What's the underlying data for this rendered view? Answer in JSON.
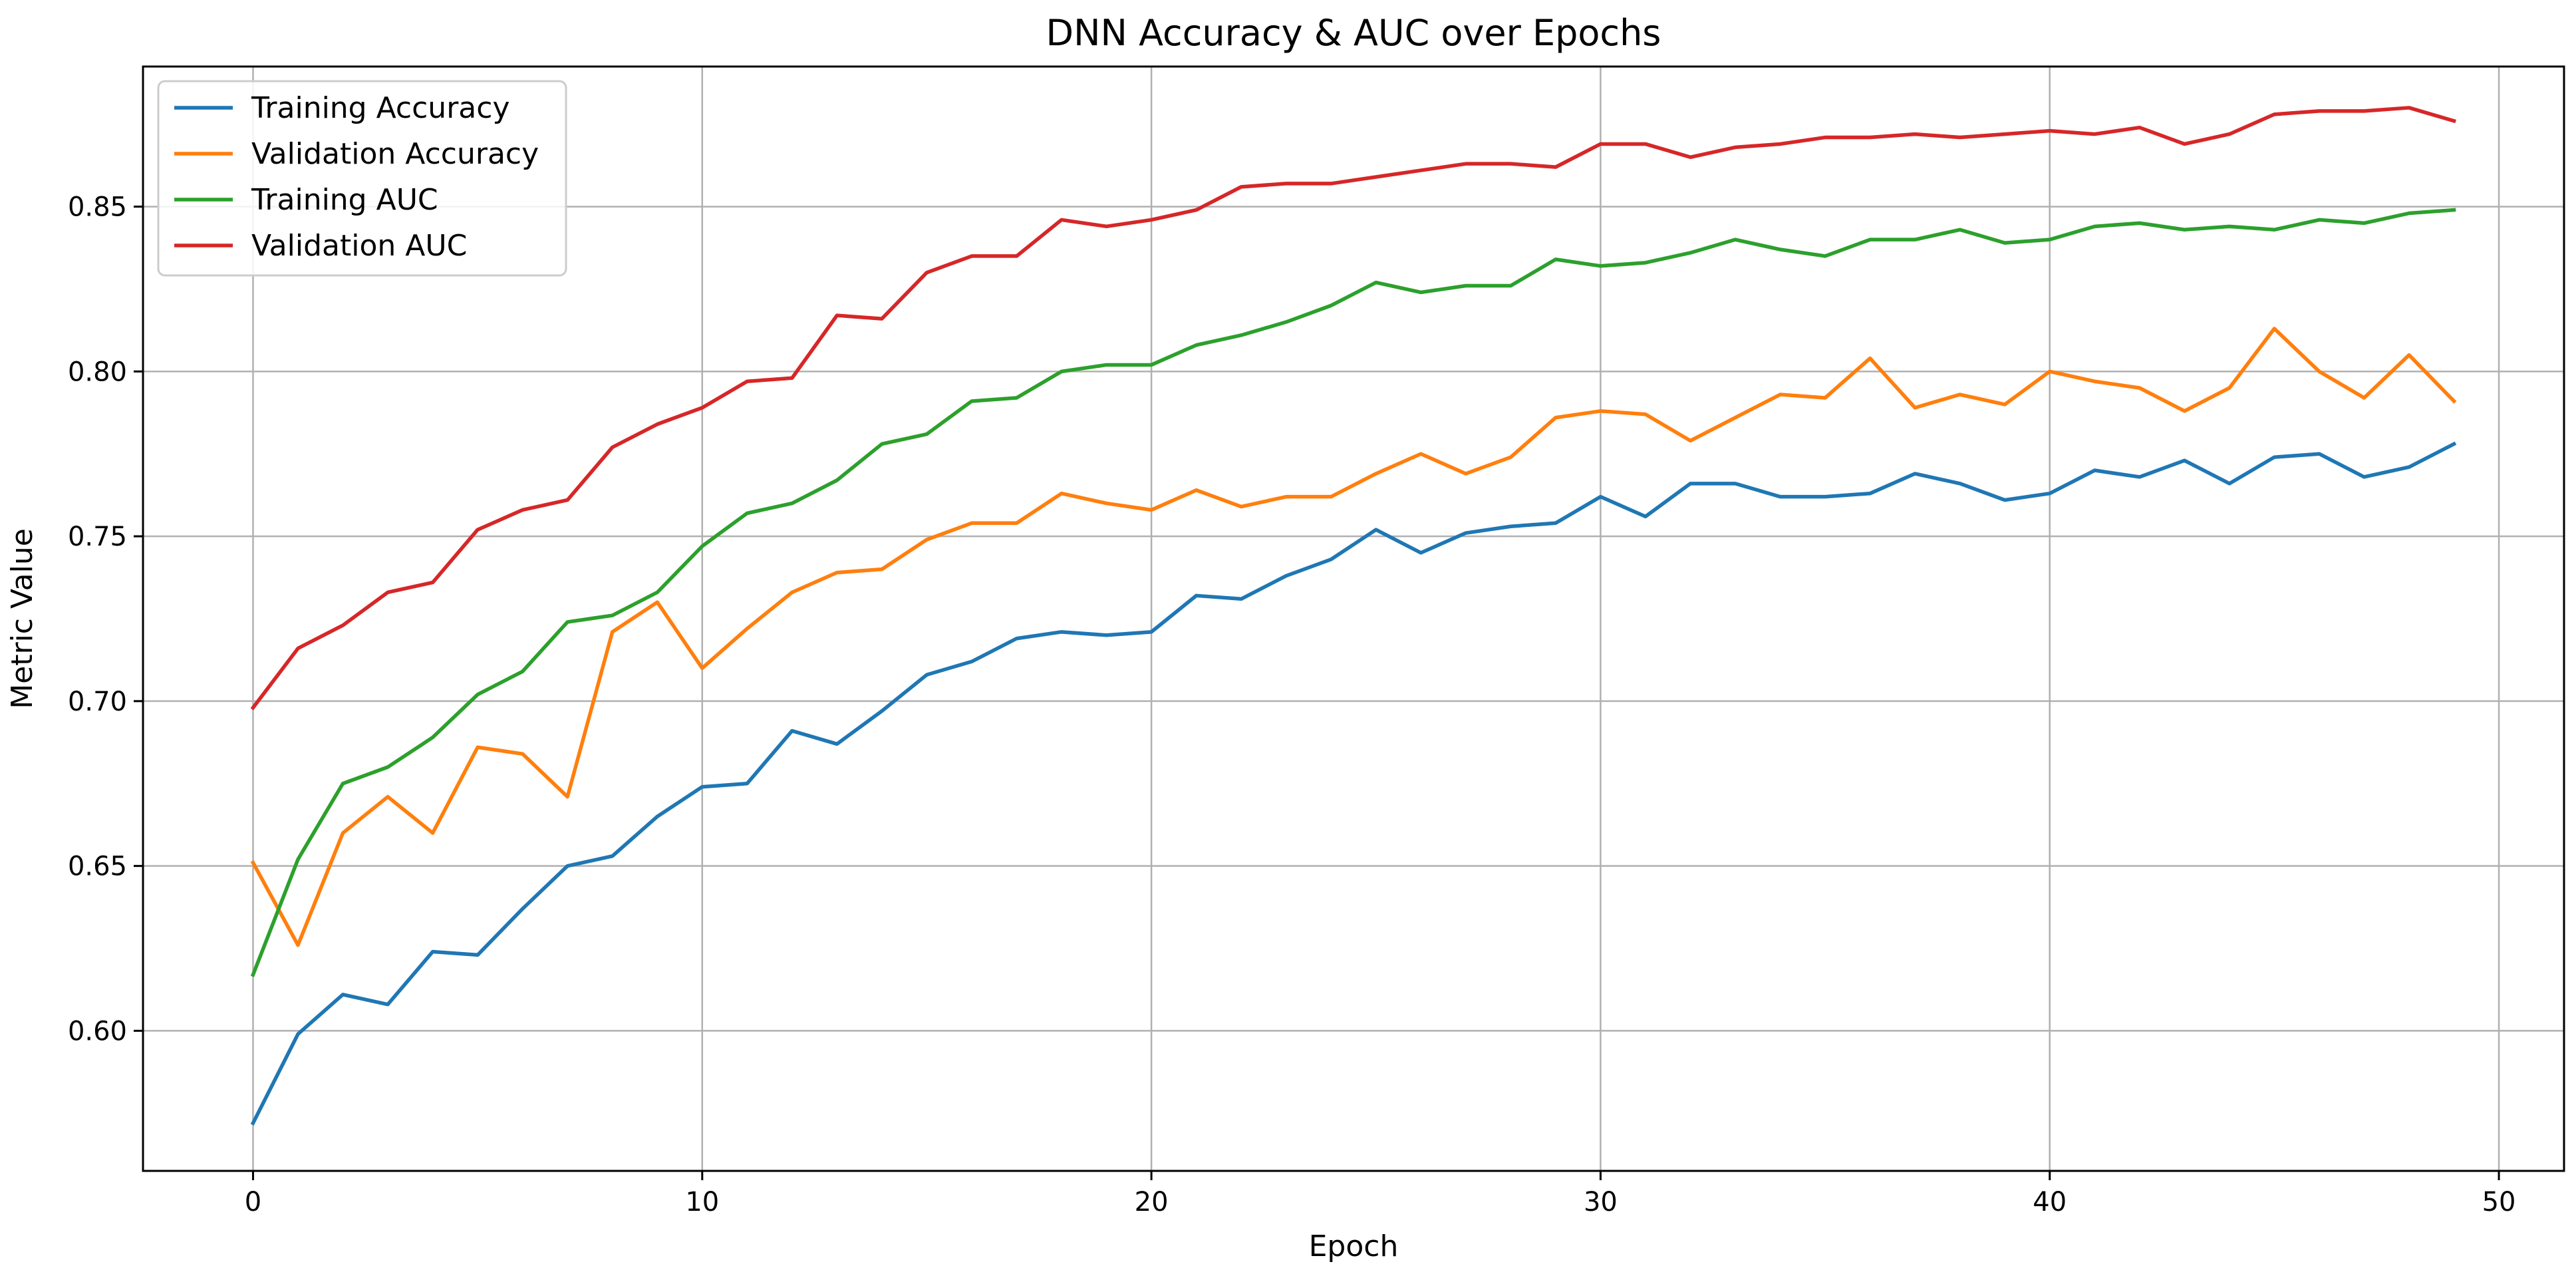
{
  "chart_data": {
    "type": "line",
    "title": "DNN Accuracy & AUC over Epochs",
    "xlabel": "Epoch",
    "ylabel": "Metric Value",
    "xlim": [
      -2.45,
      51.45
    ],
    "ylim": [
      0.5575,
      0.8925
    ],
    "xticks": [
      0,
      10,
      20,
      30,
      40,
      50
    ],
    "yticks": [
      0.6,
      0.65,
      0.7,
      0.75,
      0.8,
      0.85
    ],
    "grid": true,
    "legend_position": "top-left",
    "x": [
      0,
      1,
      2,
      3,
      4,
      5,
      6,
      7,
      8,
      9,
      10,
      11,
      12,
      13,
      14,
      15,
      16,
      17,
      18,
      19,
      20,
      21,
      22,
      23,
      24,
      25,
      26,
      27,
      28,
      29,
      30,
      31,
      32,
      33,
      34,
      35,
      36,
      37,
      38,
      39,
      40,
      41,
      42,
      43,
      44,
      45,
      46,
      47,
      48,
      49
    ],
    "series": [
      {
        "name": "Training Accuracy",
        "color": "#1f77b4",
        "values": [
          0.572,
          0.599,
          0.611,
          0.608,
          0.624,
          0.623,
          0.637,
          0.65,
          0.653,
          0.665,
          0.674,
          0.675,
          0.691,
          0.687,
          0.697,
          0.708,
          0.712,
          0.719,
          0.721,
          0.72,
          0.721,
          0.732,
          0.731,
          0.738,
          0.743,
          0.752,
          0.745,
          0.751,
          0.753,
          0.754,
          0.762,
          0.756,
          0.766,
          0.766,
          0.762,
          0.762,
          0.763,
          0.769,
          0.766,
          0.761,
          0.763,
          0.77,
          0.768,
          0.773,
          0.766,
          0.774,
          0.775,
          0.768,
          0.771,
          0.778
        ]
      },
      {
        "name": "Validation Accuracy",
        "color": "#ff7f0e",
        "values": [
          0.651,
          0.626,
          0.66,
          0.671,
          0.66,
          0.686,
          0.684,
          0.671,
          0.721,
          0.73,
          0.71,
          0.722,
          0.733,
          0.739,
          0.74,
          0.749,
          0.754,
          0.754,
          0.763,
          0.76,
          0.758,
          0.764,
          0.759,
          0.762,
          0.762,
          0.769,
          0.775,
          0.769,
          0.774,
          0.786,
          0.788,
          0.787,
          0.779,
          0.786,
          0.793,
          0.792,
          0.804,
          0.789,
          0.793,
          0.79,
          0.8,
          0.797,
          0.795,
          0.788,
          0.795,
          0.813,
          0.8,
          0.792,
          0.805,
          0.791
        ]
      },
      {
        "name": "Training AUC",
        "color": "#2ca02c",
        "values": [
          0.617,
          0.652,
          0.675,
          0.68,
          0.689,
          0.702,
          0.709,
          0.724,
          0.726,
          0.733,
          0.747,
          0.757,
          0.76,
          0.767,
          0.778,
          0.781,
          0.791,
          0.792,
          0.8,
          0.802,
          0.802,
          0.808,
          0.811,
          0.815,
          0.82,
          0.827,
          0.824,
          0.826,
          0.826,
          0.834,
          0.832,
          0.833,
          0.836,
          0.84,
          0.837,
          0.835,
          0.84,
          0.84,
          0.843,
          0.839,
          0.84,
          0.844,
          0.845,
          0.843,
          0.844,
          0.843,
          0.846,
          0.845,
          0.848,
          0.849
        ]
      },
      {
        "name": "Validation AUC",
        "color": "#d62728",
        "values": [
          0.698,
          0.716,
          0.723,
          0.733,
          0.736,
          0.752,
          0.758,
          0.761,
          0.777,
          0.784,
          0.789,
          0.797,
          0.798,
          0.817,
          0.816,
          0.83,
          0.835,
          0.835,
          0.846,
          0.844,
          0.846,
          0.849,
          0.856,
          0.857,
          0.857,
          0.859,
          0.861,
          0.863,
          0.863,
          0.862,
          0.869,
          0.869,
          0.865,
          0.868,
          0.869,
          0.871,
          0.871,
          0.872,
          0.871,
          0.872,
          0.873,
          0.872,
          0.874,
          0.869,
          0.872,
          0.878,
          0.879,
          0.879,
          0.88,
          0.876
        ]
      }
    ]
  }
}
